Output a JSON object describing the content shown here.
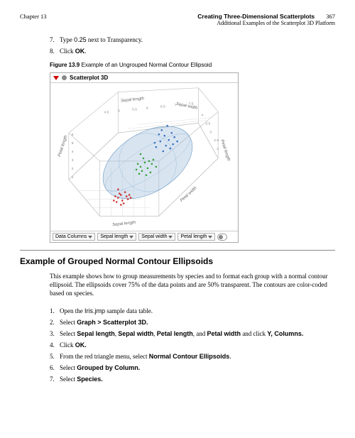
{
  "header": {
    "chapter": "Chapter 13",
    "title": "Creating Three-Dimensional Scatterplots",
    "subtitle": "Additional Examples of the Scatterplot 3D Platform",
    "page": "367"
  },
  "steps_top": [
    {
      "n": "7.",
      "pre": "Type ",
      "code": "0.25",
      "post": " next to Transparency."
    },
    {
      "n": "8.",
      "pre": "Click ",
      "bold": "OK",
      "post": "."
    }
  ],
  "figure": {
    "label": "Figure 13.9",
    "caption": "Example of an Ungrouped Normal Contour Ellipsoid",
    "window_title": "Scatterplot 3D",
    "axes": {
      "a1": "Sepal length",
      "a2": "Sepal width",
      "a3": "Petal length",
      "a4": "Sepal length",
      "a5": "Petal width",
      "ticks_sl": [
        "4.5",
        "5",
        "5.5",
        "6",
        "6.5",
        "7",
        "7.5"
      ],
      "ticks_sw": [
        "4",
        "3.5",
        "3",
        "2.5",
        "2"
      ],
      "ticks_pl": [
        "1",
        "2",
        "3",
        "4",
        "5",
        "6"
      ]
    },
    "ellipsoid_color": "#8fb5d6",
    "ellipsoid_opacity": 0.35,
    "bg": "#ffffff",
    "grid_color": "#bbbbbb",
    "point_colors": {
      "red": "#d03030",
      "green": "#3aa03a",
      "blue": "#3a6fc0"
    },
    "points_red": [
      [
        96,
        162
      ],
      [
        100,
        158
      ],
      [
        102,
        166
      ],
      [
        94,
        168
      ],
      [
        108,
        160
      ],
      [
        98,
        156
      ],
      [
        104,
        170
      ],
      [
        110,
        164
      ],
      [
        92,
        160
      ],
      [
        106,
        154
      ],
      [
        100,
        172
      ],
      [
        112,
        158
      ],
      [
        96,
        150
      ],
      [
        90,
        166
      ],
      [
        114,
        162
      ]
    ],
    "points_green": [
      [
        128,
        118
      ],
      [
        134,
        112
      ],
      [
        130,
        124
      ],
      [
        140,
        110
      ],
      [
        126,
        128
      ],
      [
        138,
        120
      ],
      [
        144,
        114
      ],
      [
        132,
        106
      ],
      [
        122,
        122
      ],
      [
        136,
        130
      ],
      [
        146,
        108
      ],
      [
        124,
        114
      ],
      [
        150,
        118
      ],
      [
        142,
        126
      ],
      [
        128,
        100
      ]
    ],
    "points_blue": [
      [
        156,
        82
      ],
      [
        162,
        74
      ],
      [
        168,
        80
      ],
      [
        150,
        90
      ],
      [
        172,
        70
      ],
      [
        158,
        66
      ],
      [
        164,
        88
      ],
      [
        176,
        76
      ],
      [
        148,
        84
      ],
      [
        170,
        92
      ],
      [
        154,
        72
      ],
      [
        180,
        82
      ],
      [
        160,
        96
      ],
      [
        174,
        86
      ],
      [
        166,
        60
      ]
    ],
    "footer": {
      "label": "Data Columns",
      "c1": "Sepal length",
      "c2": "Sepal width",
      "c3": "Petal length"
    }
  },
  "section": {
    "title": "Example of Grouped Normal Contour Ellipsoids",
    "para": "This example shows how to group measurements by species and to format each group with a normal contour ellipsoid. The ellipsoids cover 75% of the data points and are 50% transparent. The contours are color-coded based on species.",
    "steps": [
      {
        "n": "1.",
        "parts": [
          {
            "t": "Open the "
          },
          {
            "t": "Iris.jmp",
            "cls": "sans"
          },
          {
            "t": " sample data table."
          }
        ]
      },
      {
        "n": "2.",
        "parts": [
          {
            "t": "Select "
          },
          {
            "t": "Graph > Scatterplot 3D.",
            "cls": "sans b"
          }
        ]
      },
      {
        "n": "3.",
        "parts": [
          {
            "t": "Select "
          },
          {
            "t": "Sepal length",
            "cls": "sans b"
          },
          {
            "t": ", "
          },
          {
            "t": "Sepal width",
            "cls": "sans b"
          },
          {
            "t": ", "
          },
          {
            "t": "Petal length",
            "cls": "sans b"
          },
          {
            "t": ", and "
          },
          {
            "t": "Petal width",
            "cls": "sans b"
          },
          {
            "t": " and click "
          },
          {
            "t": "Y, Columns.",
            "cls": "sans b"
          }
        ]
      },
      {
        "n": "4.",
        "parts": [
          {
            "t": "Click "
          },
          {
            "t": "OK.",
            "cls": "sans b"
          }
        ]
      },
      {
        "n": "5.",
        "parts": [
          {
            "t": "From the red triangle menu, select "
          },
          {
            "t": "Normal Contour Ellipsoids",
            "cls": "sans b"
          },
          {
            "t": "."
          }
        ]
      },
      {
        "n": "6.",
        "parts": [
          {
            "t": "Select "
          },
          {
            "t": "Grouped by Column.",
            "cls": "sans b"
          }
        ]
      },
      {
        "n": "7.",
        "parts": [
          {
            "t": "Select "
          },
          {
            "t": "Species.",
            "cls": "sans b"
          }
        ]
      }
    ]
  }
}
